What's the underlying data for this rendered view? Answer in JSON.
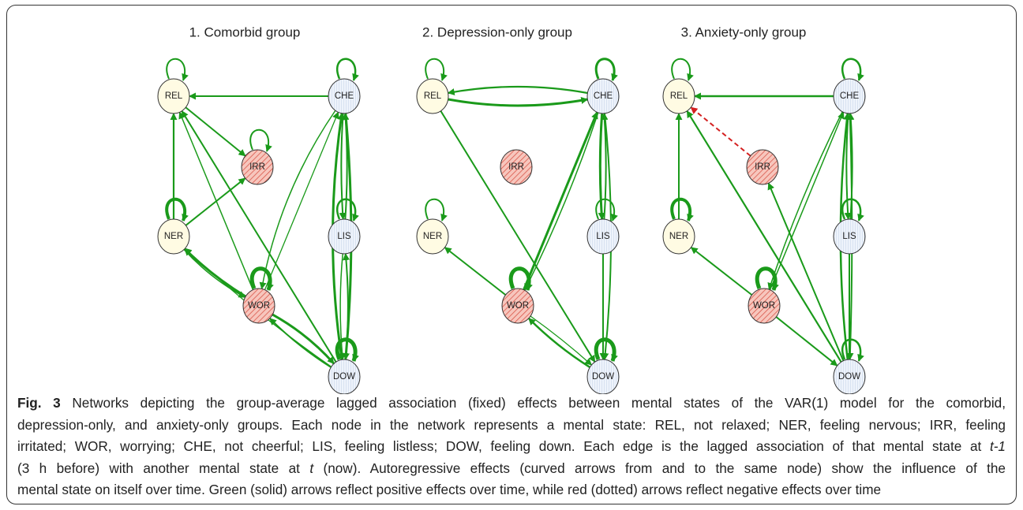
{
  "panels": [
    {
      "title": "1. Comorbid group",
      "nodes": [
        "REL",
        "CHE",
        "IRR",
        "NER",
        "LIS",
        "WOR",
        "DOW"
      ]
    },
    {
      "title": "2. Depression-only group",
      "nodes": [
        "REL",
        "CHE",
        "IRR",
        "NER",
        "LIS",
        "WOR",
        "DOW"
      ]
    },
    {
      "title": "3. Anxiety-only group",
      "nodes": [
        "REL",
        "CHE",
        "IRR",
        "NER",
        "LIS",
        "WOR",
        "DOW"
      ]
    }
  ],
  "caption": {
    "label": "Fig. 3",
    "lines": [
      [
        " Networks depicting the group-average lagged association (fixed) effects between mental states of the VAR(1) model for the comorbid,"
      ],
      [
        "depression-only, and anxiety-only groups. Each node in the network represents a mental state: REL, not relaxed; NER, feeling nervous; IRR, feeling"
      ],
      [
        "irritated; WOR, worrying; CHE, not cheerful; LIS, feeling listless; DOW, feeling down. Each edge is the lagged association of that mental state at ",
        "t-1"
      ],
      [
        "(3 h before) with another mental state at ",
        "t",
        " (now). Autoregressive effects (curved arrows from and to the same node) show the influence of the"
      ],
      [
        "mental state on itself over time. Green (solid) arrows reflect positive effects over time, while red (dotted) arrows reflect negative effects over time"
      ]
    ]
  }
}
